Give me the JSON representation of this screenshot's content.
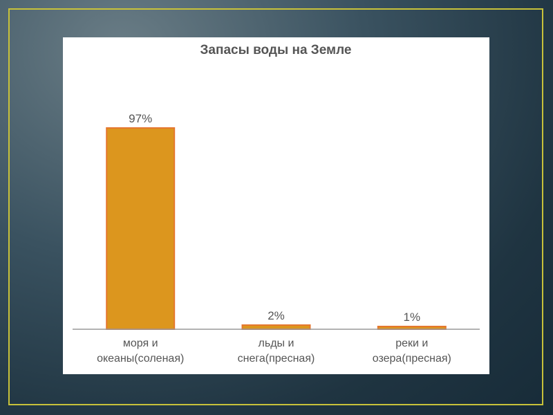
{
  "chart_data": {
    "type": "bar",
    "title": "Запасы воды на Земле",
    "categories": [
      [
        "моря и",
        "океаны(соленая)"
      ],
      [
        "льды и",
        "снега(пресная)"
      ],
      [
        "реки и",
        "озера(пресная)"
      ]
    ],
    "values": [
      97,
      2,
      1
    ],
    "data_labels": [
      "97%",
      "2%",
      "1%"
    ],
    "ylim": [
      0,
      100
    ],
    "grid": false,
    "legend": "none",
    "colors": {
      "bar_fill": "#dc961e",
      "bar_stroke": "#e5772f",
      "axis": "#999999",
      "text": "#555555"
    }
  }
}
